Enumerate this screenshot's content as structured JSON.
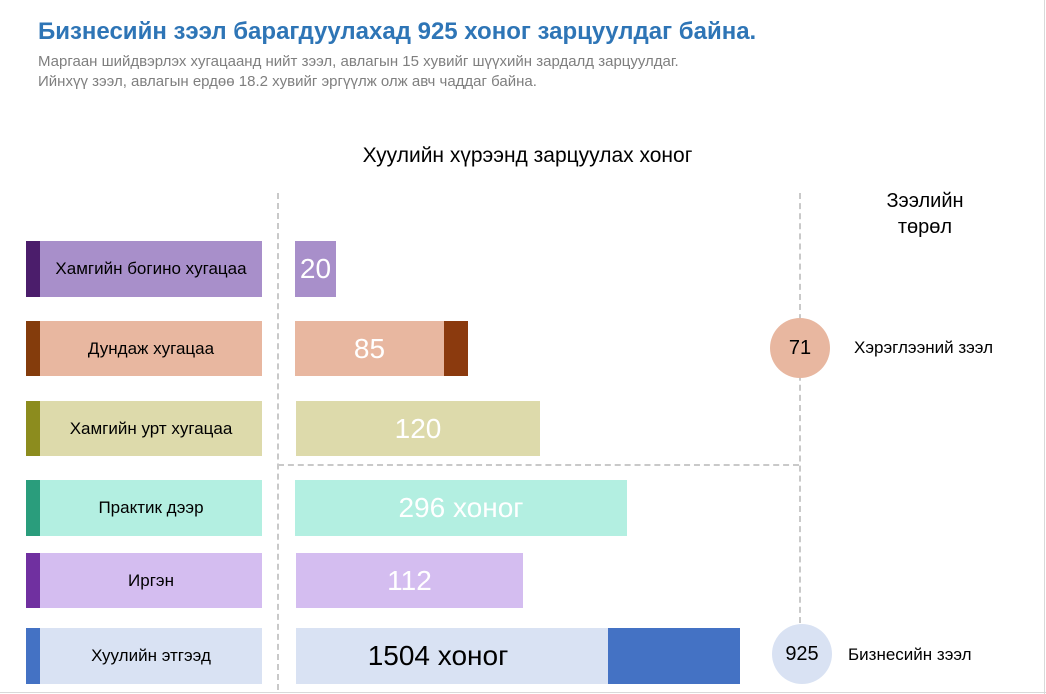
{
  "header": {
    "title": "Бизнесийн зээл барагдуулахад 925 хоног зарцуулдаг байна.",
    "subtitle_line1": "Маргаан шийдвэрлэх хугацаанд нийт зээл, авлагын 15 хувийг шүүхийн зардалд зарцуулдаг.",
    "subtitle_line2": "Ийнхүү зээл, авлагын ердөө 18.2 хувийг эргүүлж олж авч чаддаг байна."
  },
  "chart_data": {
    "type": "bar",
    "orientation": "horizontal",
    "title": "Хуулийн хүрээнд зарцуулах хоног",
    "side_heading_line1": "Зээлийн",
    "side_heading_line2": "төрөл",
    "categories": [
      "Хамгийн богино хугацаа",
      "Дундаж хугацаа",
      "Хамгийн урт хугацаа",
      "Практик дээр",
      "Иргэн",
      "Хуулийн этгээд"
    ],
    "values": [
      20,
      85,
      120,
      296,
      112,
      1504
    ],
    "data_labels": [
      "20",
      "85",
      "120",
      "296 хоног",
      "112",
      "1504 хоног"
    ],
    "groups": [
      {
        "label": "Хэрэглээний зээл",
        "total": 71
      },
      {
        "label": "Бизнесийн зээл",
        "total": 925
      }
    ]
  },
  "colors": {
    "title": "#2e75b6",
    "subtitle": "#7f7f7f",
    "rows": [
      {
        "accent": "#4b1d6b",
        "fill": "#a88fca",
        "highlight": null
      },
      {
        "accent": "#843c0c",
        "fill": "#e8b7a0",
        "highlight": "#8b3a0e"
      },
      {
        "accent": "#8c8c1e",
        "fill": "#dddaab",
        "highlight": null
      },
      {
        "accent": "#2a9d7c",
        "fill": "#b3efe1",
        "highlight": null
      },
      {
        "accent": "#7030a0",
        "fill": "#d4bdf0",
        "highlight": null
      },
      {
        "accent": "#4472c4",
        "fill": "#d9e2f3",
        "highlight": "#4472c4"
      }
    ],
    "circle_consumer": "#e8b7a0",
    "circle_business": "#d9e2f3"
  }
}
